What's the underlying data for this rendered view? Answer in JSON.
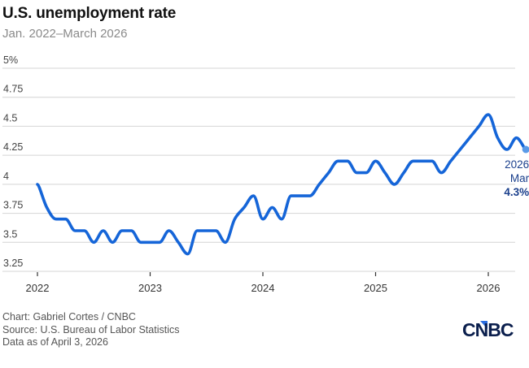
{
  "chart_data": {
    "type": "line",
    "title": "U.S. unemployment rate",
    "subtitle": "Jan. 2022–March 2026",
    "xlabel": "",
    "ylabel": "",
    "ylim": [
      3.25,
      5
    ],
    "yticks": [
      5,
      4.75,
      4.5,
      4.25,
      4,
      3.75,
      3.5,
      3.25
    ],
    "ytick_labels": [
      "5%",
      "4.75",
      "4.5",
      "4.25",
      "4",
      "3.75",
      "3.5",
      "3.25"
    ],
    "xticks": [
      "2022",
      "2023",
      "2024",
      "2025",
      "2026"
    ],
    "grid": true,
    "series": [
      {
        "name": "U.S. unemployment rate",
        "color": "#1565d8",
        "start": "2022-01",
        "values": [
          4.0,
          3.8,
          3.7,
          3.7,
          3.6,
          3.6,
          3.5,
          3.6,
          3.5,
          3.6,
          3.6,
          3.5,
          3.5,
          3.5,
          3.6,
          3.5,
          3.4,
          3.6,
          3.6,
          3.6,
          3.5,
          3.7,
          3.8,
          3.9,
          3.7,
          3.8,
          3.7,
          3.9,
          3.9,
          3.9,
          4.0,
          4.1,
          4.2,
          4.2,
          4.1,
          4.1,
          4.2,
          4.1,
          4.0,
          4.1,
          4.2,
          4.2,
          4.2,
          4.1,
          4.2,
          4.3,
          4.4,
          4.5,
          4.6,
          4.4,
          4.3,
          4.4,
          4.3
        ]
      }
    ],
    "annotation": {
      "year": "2026",
      "month": "Mar",
      "value_label": "4.3%"
    }
  },
  "footer": {
    "credit": "Chart: Gabriel Cortes / CNBC",
    "source": "Source: U.S. Bureau of Labor Statistics",
    "asof": "Data as of April 3, 2026"
  },
  "logo": {
    "text": "CNBC",
    "color": "#0b1f4d",
    "accent": "#2a6de0"
  }
}
